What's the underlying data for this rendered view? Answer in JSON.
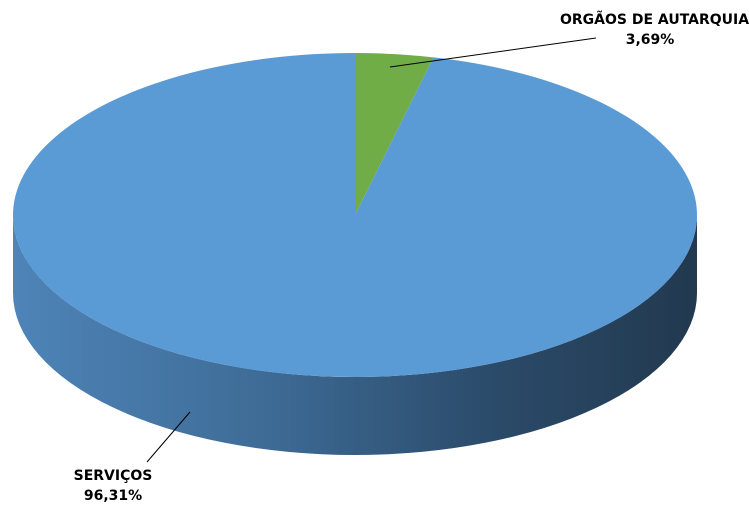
{
  "chart_data": {
    "type": "pie",
    "style": "3d",
    "title": "",
    "slices": [
      {
        "label": "ORGÃOS DE AUTARQUIA",
        "value": 3.69,
        "display": "3,69%",
        "color": "#70ad47"
      },
      {
        "label": "SERVIÇOS",
        "value": 96.31,
        "display": "96,31%",
        "color": "#5b9bd5"
      }
    ],
    "legend": "none",
    "grid": false
  }
}
